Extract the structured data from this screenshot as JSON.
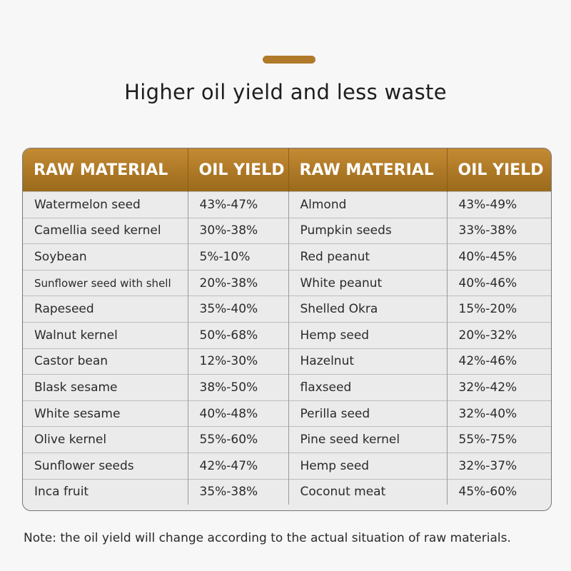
{
  "title": "Higher oil yield and less waste",
  "colors": {
    "accent": "#b07a2a",
    "header_bg": "#b07a2a"
  },
  "table": {
    "headers": [
      "RAW MATERIAL",
      "OIL YIELD",
      "RAW MATERIAL",
      "OIL YIELD"
    ],
    "rows": [
      [
        "Watermelon seed",
        "43%-47%",
        "Almond",
        "43%-49%"
      ],
      [
        "Camellia seed kernel",
        "30%-38%",
        "Pumpkin seeds",
        "33%-38%"
      ],
      [
        "Soybean",
        "5%-10%",
        "Red peanut",
        "40%-45%"
      ],
      [
        "Sunflower seed with shell",
        "20%-38%",
        "White peanut",
        "40%-46%"
      ],
      [
        "Rapeseed",
        "35%-40%",
        "Shelled Okra",
        "15%-20%"
      ],
      [
        "Walnut kernel",
        "50%-68%",
        "Hemp seed",
        "20%-32%"
      ],
      [
        "Castor bean",
        "12%-30%",
        "Hazelnut",
        "42%-46%"
      ],
      [
        "Blask sesame",
        "38%-50%",
        "flaxseed",
        "32%-42%"
      ],
      [
        "White sesame",
        "40%-48%",
        "Perilla seed",
        "32%-40%"
      ],
      [
        "Olive kernel",
        "55%-60%",
        "Pine seed kernel",
        "55%-75%"
      ],
      [
        "Sunflower seeds",
        "42%-47%",
        "Hemp seed",
        "32%-37%"
      ],
      [
        "Inca fruit",
        "35%-38%",
        "Coconut meat",
        "45%-60%"
      ]
    ]
  },
  "note": "Note: the oil yield will change according to the actual situation of raw materials."
}
